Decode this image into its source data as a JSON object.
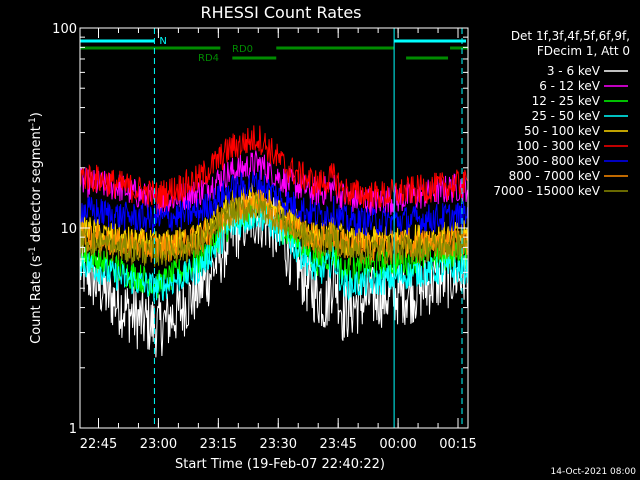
{
  "chart_data": {
    "type": "line",
    "title": "RHESSI Count Rates",
    "xlabel": "Start Time (19-Feb-07 22:40:22)",
    "ylabel": "Count Rate (s",
    "ylabel_sup": "-1",
    "ylabel_rest": " detector segment",
    "ylabel_sup2": "-1",
    "ylabel_end": ")",
    "y_scale": "log",
    "ylim": [
      1,
      100
    ],
    "y_ticks": [
      {
        "value": 1,
        "label": "1"
      },
      {
        "value": 10,
        "label": "10"
      },
      {
        "value": 100,
        "label": "100"
      }
    ],
    "xlim": [
      "22:40:22",
      "00:17:30"
    ],
    "x_ticks": [
      "22:45",
      "23:00",
      "23:15",
      "23:30",
      "23:45",
      "00:00",
      "00:15"
    ],
    "grid": false,
    "legend_position": "top-right",
    "legend_header": [
      "Det 1f,3f,4f,5f,6f,9f,",
      "FDecim 1, Att 0"
    ],
    "series": [
      {
        "name": "3 - 6 keV",
        "color": "#ffffff",
        "x": [
          "22:40",
          "22:48",
          "22:55",
          "23:00",
          "23:05",
          "23:12",
          "23:18",
          "23:22",
          "23:25",
          "23:28",
          "23:32",
          "23:38",
          "23:42",
          "23:44",
          "23:46",
          "23:48",
          "23:53",
          "23:58",
          "00:04",
          "00:10",
          "00:15"
        ],
        "values": [
          6.5,
          4.5,
          3.5,
          3.2,
          3.8,
          5.5,
          9.0,
          11.0,
          11.5,
          10.5,
          8.0,
          5.0,
          4.2,
          6.0,
          3.8,
          4.0,
          4.5,
          4.6,
          4.8,
          5.5,
          5.8
        ]
      },
      {
        "name": "6 - 12 keV",
        "color": "#ff00ff",
        "x": [
          "22:40",
          "22:50",
          "23:00",
          "23:10",
          "23:18",
          "23:25",
          "23:32",
          "23:40",
          "23:44",
          "23:46",
          "23:48",
          "23:55",
          "00:05",
          "00:15"
        ],
        "values": [
          17,
          16,
          13.5,
          15,
          19,
          21,
          17,
          15,
          16,
          14.5,
          14,
          13.5,
          14.5,
          16
        ]
      },
      {
        "name": "12 - 25 keV",
        "color": "#00ff00",
        "x": [
          "22:40",
          "22:50",
          "23:00",
          "23:10",
          "23:18",
          "23:25",
          "23:32",
          "23:40",
          "23:44",
          "23:46",
          "23:48",
          "23:55",
          "00:05",
          "00:15"
        ],
        "values": [
          7.5,
          6.2,
          5.2,
          6.8,
          10.5,
          12.5,
          9.5,
          6.8,
          7.5,
          6.0,
          6.1,
          6.5,
          7.0,
          7.3
        ]
      },
      {
        "name": "25 - 50 keV",
        "color": "#00ffff",
        "x": [
          "22:40",
          "22:50",
          "23:00",
          "23:10",
          "23:18",
          "23:25",
          "23:32",
          "23:40",
          "23:44",
          "23:46",
          "23:48",
          "23:55",
          "00:05",
          "00:15"
        ],
        "values": [
          6.8,
          5.7,
          5.0,
          6.2,
          10.0,
          11.8,
          9.0,
          5.9,
          7.0,
          5.3,
          5.2,
          5.4,
          6.0,
          6.2
        ]
      },
      {
        "name": "50 - 100 keV",
        "color": "#ffd700",
        "x": [
          "22:40",
          "22:50",
          "23:00",
          "23:10",
          "23:18",
          "23:25",
          "23:32",
          "23:40",
          "23:44",
          "23:46",
          "23:48",
          "23:55",
          "00:05",
          "00:15"
        ],
        "values": [
          10.0,
          8.8,
          8.1,
          9.0,
          13.0,
          14.5,
          11.5,
          9.0,
          9.8,
          8.8,
          8.5,
          8.6,
          8.9,
          9.2
        ]
      },
      {
        "name": "100 - 300 keV",
        "color": "#ff0000",
        "x": [
          "22:40",
          "22:50",
          "23:00",
          "23:10",
          "23:18",
          "23:25",
          "23:32",
          "23:40",
          "23:44",
          "23:46",
          "23:48",
          "23:55",
          "00:05",
          "00:15"
        ],
        "values": [
          18.5,
          16.5,
          14.5,
          17.5,
          25.0,
          28.5,
          20.0,
          16.5,
          18.0,
          15.5,
          15.0,
          14.5,
          15.5,
          16.5
        ]
      },
      {
        "name": "300 - 800 keV",
        "color": "#0000ff",
        "x": [
          "22:40",
          "22:50",
          "23:00",
          "23:10",
          "23:18",
          "23:25",
          "23:32",
          "23:40",
          "23:44",
          "23:46",
          "23:48",
          "23:55",
          "00:05",
          "00:15"
        ],
        "values": [
          12.5,
          11.5,
          11.0,
          12.0,
          15.5,
          16.8,
          13.5,
          11.5,
          12.2,
          11.0,
          10.8,
          10.8,
          11.0,
          11.5
        ]
      },
      {
        "name": "800 - 7000 keV",
        "color": "#ff8c00",
        "x": [
          "22:40",
          "22:50",
          "23:00",
          "23:10",
          "23:18",
          "23:25",
          "23:32",
          "23:40",
          "23:44",
          "23:46",
          "23:48",
          "23:55",
          "00:05",
          "00:15"
        ],
        "values": [
          9.2,
          8.3,
          7.9,
          8.6,
          12.2,
          13.5,
          10.8,
          8.6,
          9.4,
          8.4,
          8.1,
          8.1,
          8.3,
          8.6
        ]
      },
      {
        "name": "7000 - 15000 keV",
        "color": "#8b8b00",
        "x": [
          "22:40",
          "22:50",
          "23:00",
          "23:10",
          "23:18",
          "23:25",
          "23:32",
          "23:40",
          "23:44",
          "23:46",
          "23:48",
          "23:55",
          "00:05",
          "00:15"
        ],
        "values": [
          8.8,
          7.9,
          7.5,
          8.2,
          11.8,
          13.0,
          10.4,
          8.2,
          9.0,
          8.0,
          7.7,
          7.7,
          7.9,
          8.2
        ]
      }
    ],
    "vertical_lines": [
      {
        "x": "22:40:22",
        "style": "solid"
      },
      {
        "x": "22:59:00",
        "style": "dashed"
      },
      {
        "x": "23:59:00",
        "style": "solid"
      },
      {
        "x": "00:16:00",
        "style": "dashed"
      }
    ],
    "annotations": {
      "n_label": "N",
      "rd0_label": "RD0",
      "rd4_label": "RD4",
      "n_segments": [
        [
          "22:40:22",
          "22:59:00"
        ],
        [
          "23:59:00",
          "00:17:00"
        ]
      ],
      "rd0_segments": [
        [
          "22:40:22",
          "23:15:30"
        ],
        [
          "23:29:30",
          "23:59:00"
        ],
        [
          "00:13:00",
          "00:17:30"
        ]
      ],
      "rd4_segments": [
        [
          "23:18:30",
          "23:29:30"
        ],
        [
          "00:02:00",
          "00:12:30"
        ]
      ]
    },
    "annotation_colors": {
      "n": "#00ffff",
      "rd": "#008b00"
    },
    "footer_timestamp": "14-Oct-2021 08:00"
  }
}
